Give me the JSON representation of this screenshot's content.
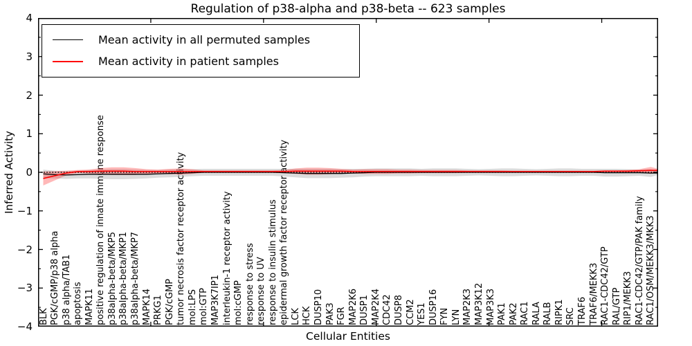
{
  "chart_data": {
    "type": "line",
    "title": "Regulation of p38-alpha and p38-beta -- 623 samples",
    "xlabel": "Cellular Entities",
    "ylabel": "Inferred Activity",
    "ylim": [
      -4,
      4
    ],
    "yticks": [
      4,
      3,
      2,
      1,
      0,
      -1,
      -2,
      -3,
      -4
    ],
    "ytick_labels": [
      "4",
      "3",
      "2",
      "1",
      "0",
      "−1",
      "−2",
      "−3",
      "−4"
    ],
    "y_minor_ticks": [
      3.5,
      2.5,
      1.5,
      0.5,
      -0.5,
      -1.5,
      -2.5,
      -3.5
    ],
    "x_major_ticks": [
      10,
      20,
      30,
      40,
      50
    ],
    "x_axis_max": 55,
    "grid": false,
    "legend_position": "upper left",
    "frame_color": "#000000",
    "categories": [
      "BLK",
      "PGK/cGMP/p38 alpha",
      "p38 alpha/TAB1",
      "apoptosis",
      "MAPK11",
      "positive regulation of innate immune response",
      "p38alpha-beta/MKP5",
      "p38alpha-beta/MKP1",
      "p38alpha-beta/MKP7",
      "MAPK14",
      "PRKG1",
      "PGK/cGMP",
      "tumor necrosis factor receptor activity",
      "mol:LPS",
      "mol:GTP",
      "MAP3K7IP1",
      "interleukin-1 receptor activity",
      "mol:cGMP",
      "response to stress",
      "response to UV",
      "response to insulin stimulus",
      "epidermal growth factor receptor activity",
      "LCK",
      "HCK",
      "DUSP10",
      "PAK3",
      "FGR",
      "MAP2K6",
      "DUSP1",
      "MAP2K4",
      "CDC42",
      "DUSP8",
      "CCM2",
      "YES1",
      "DUSP16",
      "FYN",
      "LYN",
      "MAP2K3",
      "MAP3K12",
      "MAP3K3",
      "PAK1",
      "PAK2",
      "RAC1",
      "RALA",
      "RALB",
      "RIPK1",
      "SRC",
      "TRAF6",
      "TRAF6/MEKK3",
      "RAC1-CDC42/GTP",
      "RAL/GTP",
      "RIP1/MEKK3",
      "RAC1-CDC42/GTP/PAK family",
      "RAC1/OSM/MEKK3/MKK3"
    ],
    "series": [
      {
        "name": "Mean activity in all permuted samples",
        "color": "#000000",
        "line_width": 1.3,
        "band_color": "#999999",
        "band_opacity": 0.35,
        "values": [
          -0.04,
          -0.06,
          -0.07,
          -0.06,
          -0.05,
          -0.05,
          -0.05,
          -0.05,
          -0.05,
          -0.05,
          -0.04,
          -0.03,
          -0.02,
          -0.01,
          0,
          0,
          0,
          0,
          0,
          0,
          0,
          -0.01,
          -0.02,
          -0.03,
          -0.03,
          -0.03,
          -0.03,
          -0.02,
          -0.01,
          0,
          0,
          0,
          0,
          0,
          0,
          0,
          0,
          0,
          0,
          0,
          0,
          0,
          0,
          0,
          0,
          0,
          0,
          0,
          0,
          -0.01,
          -0.01,
          -0.01,
          -0.01,
          -0.02
        ],
        "band_halfwidth": [
          0.11,
          0.1,
          0.1,
          0.1,
          0.11,
          0.12,
          0.13,
          0.13,
          0.12,
          0.11,
          0.1,
          0.1,
          0.1,
          0.09,
          0.09,
          0.09,
          0.09,
          0.09,
          0.09,
          0.09,
          0.09,
          0.1,
          0.11,
          0.12,
          0.12,
          0.12,
          0.11,
          0.11,
          0.1,
          0.1,
          0.1,
          0.1,
          0.1,
          0.09,
          0.1,
          0.1,
          0.1,
          0.09,
          0.08,
          0.09,
          0.1,
          0.1,
          0.09,
          0.08,
          0.09,
          0.1,
          0.1,
          0.09,
          0.09,
          0.1,
          0.1,
          0.09,
          0.08,
          0.1
        ]
      },
      {
        "name": "Mean activity in patient samples",
        "color": "#ff0000",
        "line_width": 1.6,
        "band_color": "#ff0000",
        "band_opacity": 0.28,
        "values": [
          -0.16,
          -0.09,
          -0.02,
          0.02,
          0.02,
          0.03,
          0.03,
          0.03,
          0.02,
          0.02,
          0.02,
          0.02,
          0.02,
          0.02,
          0.02,
          0.02,
          0.02,
          0.02,
          0.02,
          0.02,
          0.02,
          0.02,
          0.03,
          0.03,
          0.03,
          0.03,
          0.03,
          0.02,
          0.02,
          0.02,
          0.02,
          0.02,
          0.02,
          0.02,
          0.02,
          0.02,
          0.02,
          0.02,
          0.02,
          0.02,
          0.02,
          0.02,
          0.02,
          0.02,
          0.02,
          0.02,
          0.02,
          0.02,
          0.02,
          0.03,
          0.03,
          0.03,
          0.04,
          0.05
        ],
        "band_halfwidth": [
          0.18,
          0.12,
          0.06,
          0.04,
          0.05,
          0.08,
          0.1,
          0.1,
          0.09,
          0.06,
          0.05,
          0.07,
          0.08,
          0.06,
          0.03,
          0.03,
          0.03,
          0.03,
          0.03,
          0.03,
          0.03,
          0.04,
          0.07,
          0.09,
          0.09,
          0.08,
          0.06,
          0.05,
          0.06,
          0.06,
          0.06,
          0.05,
          0.05,
          0.04,
          0.04,
          0.04,
          0.04,
          0.03,
          0.03,
          0.03,
          0.03,
          0.02,
          0.02,
          0.02,
          0.02,
          0.02,
          0.02,
          0.02,
          0.02,
          0.02,
          0.02,
          0.03,
          0.04,
          0.09
        ]
      }
    ],
    "zero_line": {
      "value": 0,
      "style": "dotted",
      "color": "#000000"
    }
  }
}
